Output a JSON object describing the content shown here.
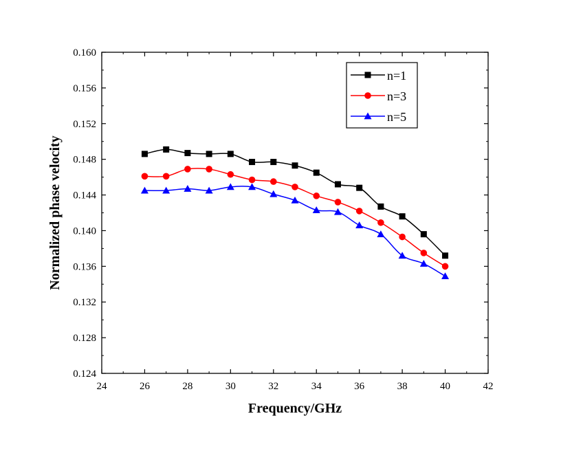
{
  "chart_data": {
    "type": "line",
    "title": "",
    "xlabel": "Frequency/GHz",
    "ylabel": "Normalized phase velocity",
    "xlim": [
      24,
      42
    ],
    "ylim": [
      0.124,
      0.16
    ],
    "x_ticks": [
      "24",
      "26",
      "28",
      "30",
      "32",
      "34",
      "36",
      "38",
      "40",
      "42"
    ],
    "y_ticks": [
      "0.124",
      "0.128",
      "0.132",
      "0.136",
      "0.140",
      "0.144",
      "0.148",
      "0.152",
      "0.156",
      "0.160"
    ],
    "grid": false,
    "legend_position": "top-right",
    "x": [
      26,
      27,
      28,
      29,
      30,
      31,
      32,
      33,
      34,
      35,
      36,
      37,
      38,
      39,
      40
    ],
    "series": [
      {
        "name": "n=1",
        "color": "#000000",
        "marker": "square",
        "values": [
          0.1486,
          0.1491,
          0.1487,
          0.1486,
          0.1486,
          0.1477,
          0.1477,
          0.1473,
          0.1465,
          0.1452,
          0.1448,
          0.1427,
          0.1416,
          0.1396,
          0.1372
        ]
      },
      {
        "name": "n=3",
        "color": "#ff0000",
        "marker": "circle",
        "values": [
          0.1461,
          0.1461,
          0.1469,
          0.1469,
          0.1463,
          0.1457,
          0.1455,
          0.1449,
          0.1439,
          0.1432,
          0.1422,
          0.1409,
          0.1393,
          0.1375,
          0.136
        ]
      },
      {
        "name": "n=5",
        "color": "#0000ff",
        "marker": "triangle",
        "values": [
          0.1445,
          0.1445,
          0.1447,
          0.1445,
          0.1449,
          0.1449,
          0.1441,
          0.1434,
          0.1423,
          0.1421,
          0.1406,
          0.1396,
          0.1372,
          0.1363,
          0.1349
        ]
      }
    ]
  }
}
